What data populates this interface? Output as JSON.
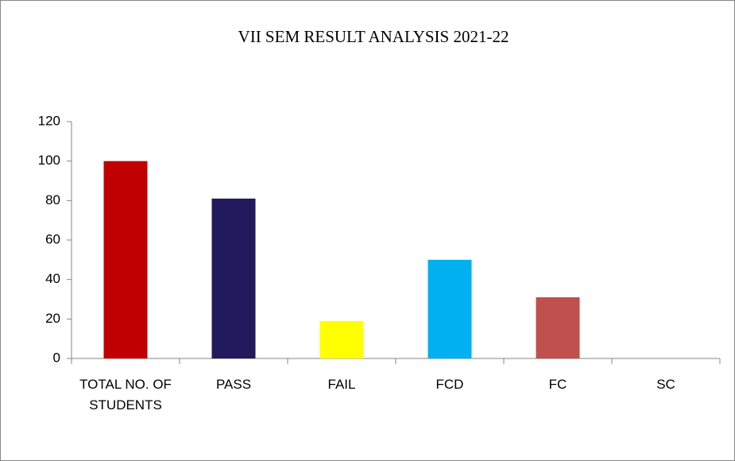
{
  "chart_data": {
    "type": "bar",
    "title": "VII SEM RESULT ANALYSIS  2021-22",
    "categories": [
      "TOTAL NO. OF STUDENTS",
      "PASS",
      "FAIL",
      "FCD",
      "FC",
      "SC"
    ],
    "values": [
      100,
      81,
      19,
      50,
      31,
      0
    ],
    "colors": [
      "#c00000",
      "#211a5c",
      "#ffff00",
      "#00b0f0",
      "#c0504d",
      "#4f81bd"
    ],
    "ylim": [
      0,
      120
    ],
    "yticks": [
      0,
      20,
      40,
      60,
      80,
      100,
      120
    ],
    "grid": false
  }
}
